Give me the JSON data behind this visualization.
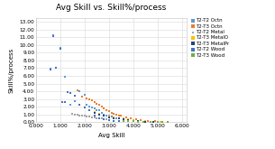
{
  "title": "Avg Skill vs. Skill%/process",
  "xlabel": "Avg Skill",
  "ylabel": "Skill%/process",
  "xlim": [
    0,
    6200
  ],
  "ylim": [
    0,
    13.5
  ],
  "xticks": [
    0,
    1000,
    2000,
    3000,
    4000,
    5000,
    6000
  ],
  "xtick_labels": [
    "0.000",
    "1.000",
    "2.000",
    "3.000",
    "4.000",
    "5.000",
    "6.000"
  ],
  "yticks": [
    0,
    1,
    2,
    3,
    4,
    5,
    6,
    7,
    8,
    9,
    10,
    11,
    12,
    13
  ],
  "ytick_labels": [
    "0.00",
    "1.00",
    "2.00",
    "3.00",
    "4.00",
    "5.00",
    "6.00",
    "7.00",
    "8.00",
    "9.00",
    "10.00",
    "11.00",
    "12.00",
    "13.00"
  ],
  "series": [
    {
      "label": "T2-T2 Octn",
      "color": "#5b9bd5",
      "marker": "s",
      "size": 4,
      "x": [
        620,
        730,
        820,
        1000,
        1200,
        1400,
        1600,
        1800,
        2000,
        2100,
        2200,
        2300,
        2400,
        2500,
        2600,
        2700,
        2800,
        2900,
        3000,
        3100,
        3200,
        3300
      ],
      "y": [
        6.9,
        11.2,
        7.1,
        9.6,
        5.85,
        2.3,
        2.7,
        4.0,
        3.5,
        2.3,
        2.0,
        1.9,
        1.8,
        1.6,
        1.5,
        1.2,
        1.0,
        0.9,
        0.8,
        0.7,
        0.6,
        0.55
      ]
    },
    {
      "label": "T2-T3 Octn",
      "color": "#ed7d31",
      "marker": "s",
      "size": 4,
      "x": [
        1700,
        1900,
        2100,
        2200,
        2300,
        2400,
        2500,
        2600,
        2700,
        2800,
        2900,
        3000,
        3100,
        3200,
        3300,
        3400,
        3500,
        3700,
        3900,
        4100,
        4300,
        4600,
        4900
      ],
      "y": [
        4.1,
        3.3,
        3.1,
        3.0,
        2.8,
        2.6,
        2.4,
        2.2,
        2.0,
        1.8,
        1.6,
        1.4,
        1.2,
        1.1,
        1.0,
        0.9,
        0.8,
        0.6,
        0.5,
        0.4,
        0.3,
        0.2,
        0.12
      ]
    },
    {
      "label": "T2-T2 Metal",
      "color": "#a5a5a5",
      "marker": "s",
      "size": 3,
      "x": [
        1500,
        1600,
        1700,
        1800,
        1900,
        2000,
        2100,
        2200,
        2300,
        2400,
        2500,
        2600,
        2700,
        2800,
        2900,
        3000
      ],
      "y": [
        1.1,
        1.0,
        0.95,
        0.9,
        0.85,
        0.8,
        0.75,
        0.7,
        0.65,
        0.6,
        0.55,
        0.5,
        0.45,
        0.4,
        0.35,
        0.3
      ]
    },
    {
      "label": "T2-T3 MetalO",
      "color": "#ffc000",
      "marker": "s",
      "size": 4,
      "x": [
        2400,
        2600,
        2800,
        3000,
        3200,
        3400,
        3600,
        3800,
        4000,
        4200,
        4500,
        4800,
        5100
      ],
      "y": [
        1.3,
        1.1,
        0.9,
        0.75,
        0.65,
        0.55,
        0.45,
        0.35,
        0.28,
        0.2,
        0.12,
        0.07,
        0.04
      ]
    },
    {
      "label": "T2-T3 MetalPr",
      "color": "#264478",
      "marker": "s",
      "size": 4,
      "x": [
        2400,
        2600,
        2800,
        3000,
        3200,
        3400,
        3600,
        3800,
        4000,
        4200,
        4500,
        4800
      ],
      "y": [
        1.2,
        1.0,
        0.8,
        0.65,
        0.55,
        0.45,
        0.35,
        0.27,
        0.2,
        0.14,
        0.08,
        0.05
      ]
    },
    {
      "label": "T2-T2 Wood",
      "color": "#4472c4",
      "marker": "s",
      "size": 4,
      "x": [
        620,
        730,
        820,
        1000,
        1100,
        1200,
        1300,
        1400,
        1600,
        1800,
        2000,
        2200,
        2400,
        2600,
        2800,
        3000,
        3200,
        3400
      ],
      "y": [
        6.85,
        11.1,
        7.05,
        9.55,
        2.65,
        2.65,
        3.9,
        3.8,
        3.45,
        2.25,
        1.85,
        1.55,
        0.85,
        0.55,
        0.4,
        0.25,
        0.16,
        0.1
      ]
    },
    {
      "label": "T2-T3 Wood",
      "color": "#70ad47",
      "marker": "s",
      "size": 4,
      "x": [
        3600,
        3800,
        4000,
        4200,
        4400,
        4700,
        5000,
        5200,
        5400
      ],
      "y": [
        0.14,
        0.12,
        0.1,
        0.08,
        0.07,
        0.05,
        0.04,
        0.03,
        0.02
      ]
    }
  ],
  "background_color": "#ffffff",
  "grid_color": "#d9d9d9",
  "title_fontsize": 6.5,
  "label_fontsize": 5.0,
  "tick_fontsize": 4.2,
  "legend_fontsize": 4.0
}
